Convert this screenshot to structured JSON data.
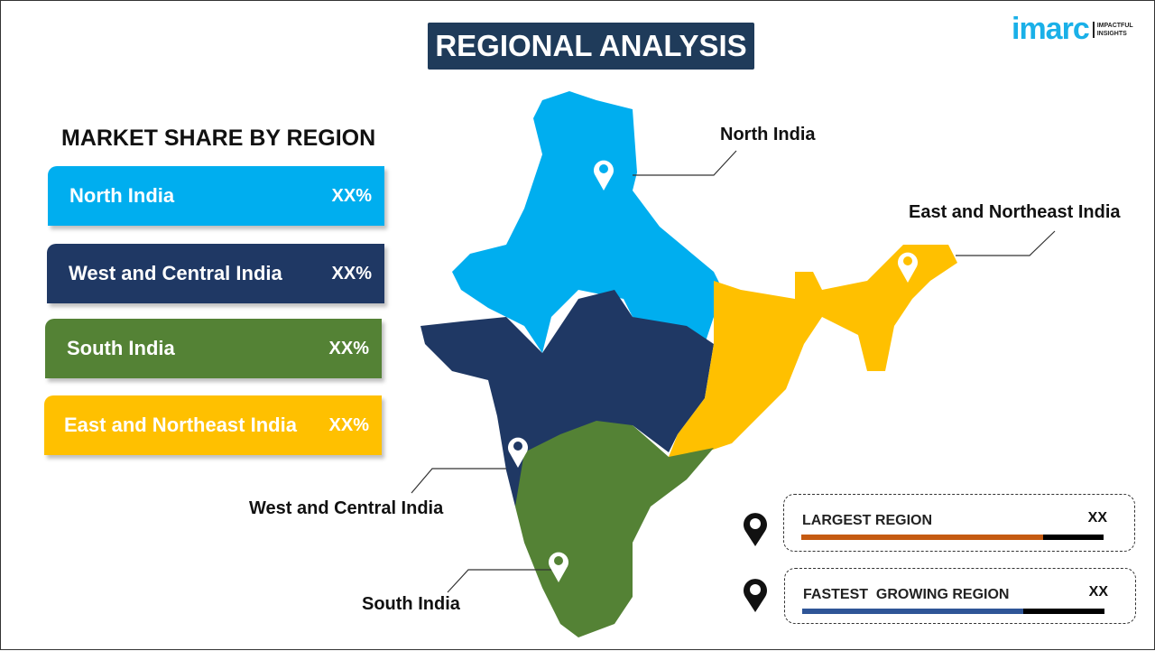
{
  "title": "REGIONAL ANALYSIS",
  "logo": {
    "brand": "imarc",
    "tagline_1": "IMPACTFUL",
    "tagline_2": "INSIGHTS"
  },
  "panel": {
    "heading": "MARKET SHARE BY REGION",
    "regions": [
      {
        "label": "North India",
        "value": "XX%",
        "color": "#00aeef"
      },
      {
        "label": "West and Central India",
        "value": "XX%",
        "color": "#1f3864"
      },
      {
        "label": "South India",
        "value": "XX%",
        "color": "#548235"
      },
      {
        "label": "East and Northeast India",
        "value": "XX%",
        "color": "#ffc000"
      }
    ]
  },
  "map_labels": {
    "north": "North India",
    "east": "East and Northeast India",
    "west": "West and Central India",
    "south": "South India"
  },
  "legend": [
    {
      "label": "LARGEST REGION",
      "value": "XX",
      "fill_percent": 80,
      "color": "#c55a11"
    },
    {
      "label": "FASTEST  GROWING REGION",
      "value": "XX",
      "fill_percent": 73,
      "color": "#2f5597"
    }
  ]
}
